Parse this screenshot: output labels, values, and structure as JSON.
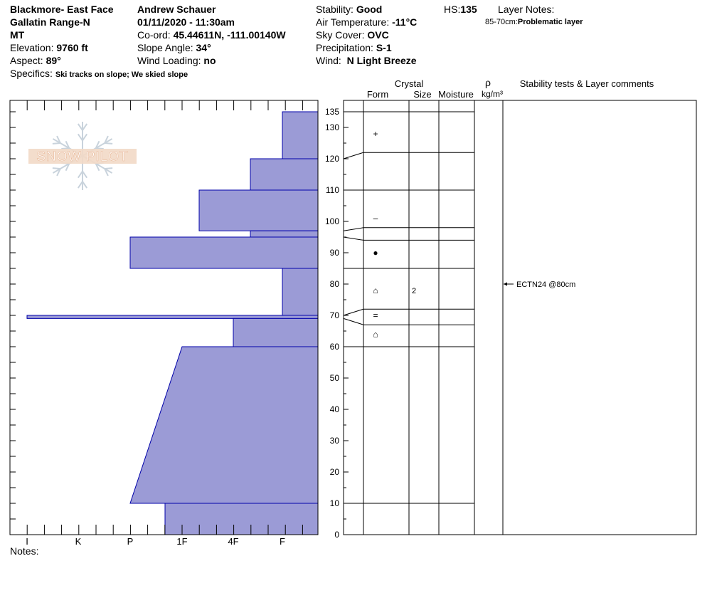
{
  "header": {
    "location": "Blackmore- East Face",
    "range": "Gallatin Range-N",
    "state": "MT",
    "elevation_label": "Elevation:",
    "elevation_value": "9760 ft",
    "aspect_label": "Aspect:",
    "aspect_value": "89°",
    "specifics_label": "Specifics:",
    "specifics_value": "Ski tracks on slope; We skied slope",
    "observer": "Andrew Schauer",
    "datetime": "01/11/2020 - 11:30am",
    "coord_label": "Co-ord:",
    "coord_value": "45.44611N, -111.00140W",
    "slope_label": "Slope Angle:",
    "slope_value": "34°",
    "wind_loading_label": "Wind Loading:",
    "wind_loading_value": "no",
    "stability_label": "Stability:",
    "stability_value": "Good",
    "air_temp_label": "Air Temperature:",
    "air_temp_value": "-11°C",
    "sky_label": "Sky Cover:",
    "sky_value": "OVC",
    "precip_label": "Precipitation:",
    "precip_value": "S-1",
    "wind_label": "Wind:",
    "wind_value": "N Light Breeze",
    "hs_label": "HS:",
    "hs_value": "135",
    "layer_notes_label": "Layer Notes:",
    "layer_note_range": "85-70cm:",
    "layer_note_text": "Problematic layer"
  },
  "logo_text": "SNOW PILOT",
  "notes_label": "Notes:",
  "columns": {
    "crystal": "Crystal",
    "form": "Form",
    "size": "Size",
    "moisture": "Moisture",
    "rho": "ρ",
    "density_unit": "kg/m³",
    "comments": "Stability tests & Layer comments"
  },
  "colors": {
    "hardness_fill": "#9b9bd6",
    "hardness_stroke": "#0000aa"
  },
  "chart_data": {
    "type": "bar",
    "title": "",
    "xlabel": "",
    "ylabel": "",
    "hardness_categories": [
      "I",
      "K",
      "P",
      "1F",
      "4F",
      "F"
    ],
    "height_ticks": [
      0,
      10,
      20,
      30,
      40,
      50,
      60,
      70,
      80,
      90,
      100,
      110,
      120,
      130,
      135
    ],
    "ylim": [
      0,
      135
    ],
    "hardness_profile": [
      {
        "top": 135,
        "bottom": 120,
        "hardness_top": "F",
        "hardness_bottom": "F"
      },
      {
        "top": 120,
        "bottom": 110,
        "hardness_top": "4F+",
        "hardness_bottom": "4F+"
      },
      {
        "top": 110,
        "bottom": 97,
        "hardness_top": "1F+",
        "hardness_bottom": "1F+"
      },
      {
        "top": 97,
        "bottom": 95,
        "hardness_top": "4F+",
        "hardness_bottom": "4F+"
      },
      {
        "top": 95,
        "bottom": 85,
        "hardness_top": "P",
        "hardness_bottom": "P"
      },
      {
        "top": 85,
        "bottom": 70,
        "hardness_top": "F",
        "hardness_bottom": "F"
      },
      {
        "top": 70,
        "bottom": 69,
        "hardness_top": "I",
        "hardness_bottom": "I"
      },
      {
        "top": 69,
        "bottom": 60,
        "hardness_top": "4F",
        "hardness_bottom": "4F"
      },
      {
        "top": 60,
        "bottom": 10,
        "hardness_top": "1F",
        "hardness_bottom": "P"
      },
      {
        "top": 10,
        "bottom": 0,
        "hardness_top": "1F-",
        "hardness_bottom": "1F-"
      }
    ],
    "layer_boundaries": [
      135,
      122,
      110,
      98,
      94,
      85,
      72,
      67,
      60,
      10
    ],
    "layer_label_heights": [
      135,
      120,
      110,
      97,
      95,
      85,
      70,
      69,
      60,
      10
    ],
    "crystal_forms": [
      {
        "height": 128,
        "symbol": "+"
      },
      {
        "height": 101,
        "symbol": "–"
      },
      {
        "height": 90,
        "symbol": "●"
      },
      {
        "height": 78,
        "symbol": "⌂",
        "size": "2"
      },
      {
        "height": 70,
        "symbol": "="
      },
      {
        "height": 64,
        "symbol": "⌂"
      }
    ],
    "stability_tests": [
      {
        "height": 80,
        "label": "ECTN24 @80cm"
      }
    ]
  }
}
